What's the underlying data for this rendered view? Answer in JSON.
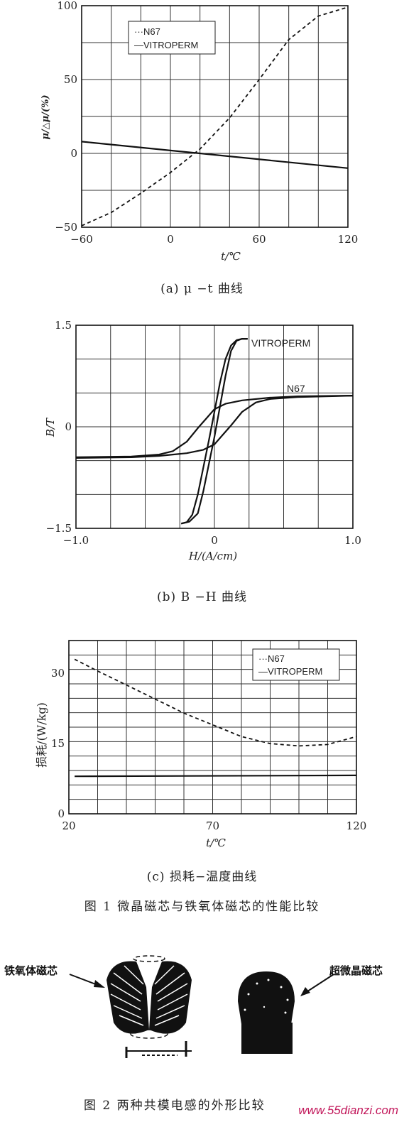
{
  "chart_data": [
    {
      "id": "a",
      "type": "line",
      "xlabel": "t/℃",
      "ylabel": "μ/△μ/(%)",
      "xlim": [
        -60,
        120
      ],
      "ylim": [
        -50,
        100
      ],
      "xticks": [
        -60,
        0,
        60,
        120
      ],
      "yticks": [
        -50,
        0,
        50,
        100
      ],
      "grid": true,
      "legend": {
        "placement": "top-left",
        "entries": [
          "···N67",
          "—VITROPERM"
        ]
      },
      "series": [
        {
          "name": "N67",
          "style": "dashed",
          "x": [
            -60,
            -40,
            -20,
            0,
            20,
            40,
            60,
            80,
            100,
            120
          ],
          "y": [
            -49,
            -40,
            -27,
            -13,
            3,
            24,
            50,
            77,
            93,
            99
          ]
        },
        {
          "name": "VITROPERM",
          "style": "solid",
          "x": [
            -60,
            120
          ],
          "y": [
            8,
            -10
          ]
        }
      ],
      "caption": "(a) μ −t 曲线"
    },
    {
      "id": "b",
      "type": "line",
      "xlabel": "H/(A/cm)",
      "ylabel": "B/T",
      "xlim": [
        -1.0,
        1.0
      ],
      "ylim": [
        -1.5,
        1.5
      ],
      "xticks": [
        "-1.0",
        "0",
        "1.0"
      ],
      "yticks": [
        "-1.5",
        "0",
        "1.5"
      ],
      "grid": true,
      "annotations": [
        "VITROPERM",
        "N67"
      ],
      "series": [
        {
          "name": "VITROPERM",
          "style": "solid",
          "x": [
            -0.24,
            -0.18,
            -0.12,
            -0.08,
            -0.04,
            0.0,
            0.04,
            0.08,
            0.12,
            0.16,
            0.2,
            0.24
          ],
          "y": [
            -1.43,
            -1.4,
            -1.28,
            -0.95,
            -0.55,
            -0.15,
            0.3,
            0.75,
            1.12,
            1.27,
            1.3,
            1.3
          ]
        },
        {
          "name": "VITROPERM",
          "style": "solid",
          "x": [
            -0.24,
            -0.2,
            -0.16,
            -0.12,
            -0.08,
            -0.04,
            0.0,
            0.04,
            0.08,
            0.12,
            0.16,
            0.2,
            0.24
          ],
          "y": [
            -1.43,
            -1.41,
            -1.3,
            -1.0,
            -0.6,
            -0.2,
            0.22,
            0.65,
            1.0,
            1.2,
            1.28,
            1.3,
            1.3
          ]
        },
        {
          "name": "N67",
          "style": "solid",
          "x": [
            -1.0,
            -0.6,
            -0.4,
            -0.3,
            -0.2,
            -0.12,
            -0.06,
            0.0,
            0.08,
            0.2,
            0.4,
            0.6,
            1.0
          ],
          "y": [
            -0.45,
            -0.44,
            -0.41,
            -0.36,
            -0.22,
            -0.02,
            0.12,
            0.26,
            0.34,
            0.39,
            0.43,
            0.45,
            0.46
          ]
        },
        {
          "name": "N67",
          "style": "solid",
          "x": [
            -1.0,
            -0.6,
            -0.4,
            -0.2,
            -0.08,
            0.0,
            0.06,
            0.12,
            0.2,
            0.3,
            0.4,
            0.6,
            1.0
          ],
          "y": [
            -0.46,
            -0.45,
            -0.43,
            -0.39,
            -0.34,
            -0.26,
            -0.12,
            0.02,
            0.22,
            0.36,
            0.41,
            0.44,
            0.46
          ]
        }
      ],
      "caption": "(b) B −H 曲线"
    },
    {
      "id": "c",
      "type": "line",
      "xlabel": "t/℃",
      "ylabel": "损耗/(W/kg)",
      "xlim": [
        20,
        120
      ],
      "ylim": [
        0,
        37
      ],
      "xticks": [
        20,
        70,
        120
      ],
      "yticks": [
        0,
        15,
        30
      ],
      "grid": true,
      "legend": {
        "placement": "top-right",
        "entries": [
          "···N67",
          "—VITROPERM"
        ]
      },
      "series": [
        {
          "name": "N67",
          "style": "dashed",
          "x": [
            22,
            30,
            40,
            50,
            60,
            70,
            80,
            90,
            100,
            110,
            120
          ],
          "y": [
            33,
            30.5,
            27.5,
            24.5,
            21.5,
            19,
            16.5,
            15,
            14.5,
            14.8,
            16.5
          ]
        },
        {
          "name": "VITROPERM",
          "style": "solid",
          "x": [
            22,
            120
          ],
          "y": [
            8,
            8.2
          ]
        }
      ],
      "caption": "(c) 损耗−温度曲线"
    }
  ],
  "figure1_caption": "图 1 微晶磁芯与铁氧体磁芯的性能比较",
  "figure2": {
    "label_left": "铁氧体磁芯",
    "label_right": "超微晶磁芯",
    "caption": "图 2 两种共模电感的外形比较"
  },
  "watermark": "www.55dianzi.com"
}
